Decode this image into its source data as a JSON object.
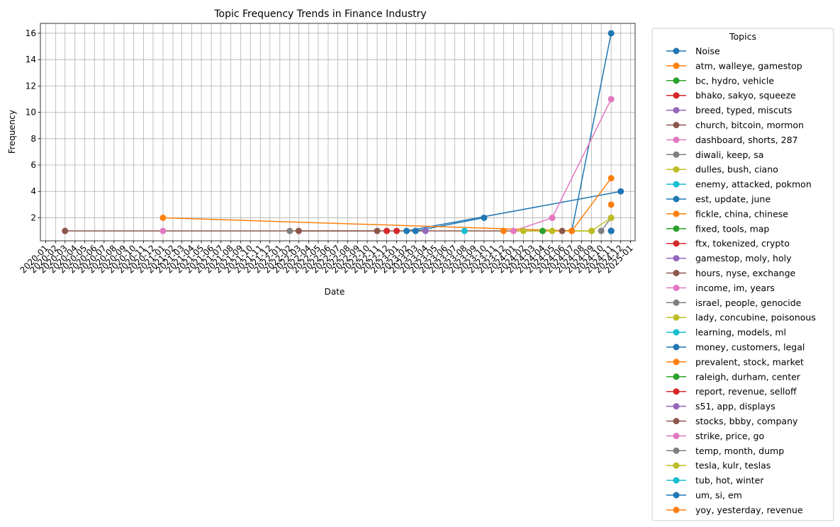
{
  "chart_data": {
    "type": "line",
    "title": "Topic Frequency Trends in Finance Industry",
    "xlabel": "Date",
    "ylabel": "Frequency",
    "x_ticks": [
      "2020-01",
      "2020-02",
      "2020-03",
      "2020-04",
      "2020-05",
      "2020-06",
      "2020-07",
      "2020-08",
      "2020-09",
      "2020-10",
      "2020-11",
      "2020-12",
      "2021-01",
      "2021-02",
      "2021-03",
      "2021-04",
      "2021-05",
      "2021-06",
      "2021-07",
      "2021-08",
      "2021-09",
      "2021-10",
      "2021-11",
      "2021-12",
      "2022-01",
      "2022-02",
      "2022-03",
      "2022-04",
      "2022-05",
      "2022-06",
      "2022-07",
      "2022-08",
      "2022-09",
      "2022-10",
      "2022-11",
      "2022-12",
      "2023-01",
      "2023-02",
      "2023-03",
      "2023-04",
      "2023-05",
      "2023-06",
      "2023-07",
      "2023-08",
      "2023-09",
      "2023-10",
      "2023-11",
      "2023-12",
      "2024-01",
      "2024-02",
      "2024-03",
      "2024-04",
      "2024-05",
      "2024-06",
      "2024-07",
      "2024-08",
      "2024-09",
      "2024-10",
      "2024-11",
      "2024-12",
      "2025-01"
    ],
    "y_ticks": [
      2,
      4,
      6,
      8,
      10,
      12,
      14,
      16
    ],
    "xlim": [
      "2019-12-15",
      "2025-01-15"
    ],
    "ylim": [
      0.25,
      16.75
    ],
    "grid": true,
    "legend": {
      "title": "Topics",
      "placement": "outside-right"
    },
    "series": [
      {
        "name": "Noise",
        "color": "#1f77b4",
        "points": [
          [
            "2024-07-01",
            1
          ],
          [
            "2024-11-01",
            16
          ]
        ]
      },
      {
        "name": "atm, walleye, gamestop",
        "color": "#ff7f0e",
        "points": [
          [
            "2024-11-01",
            3
          ]
        ]
      },
      {
        "name": "bc, hydro, vehicle",
        "color": "#2ca02c",
        "points": [
          [
            "2024-04-01",
            1
          ]
        ]
      },
      {
        "name": "bhako, sakyo, squeeze",
        "color": "#d62728",
        "points": [
          [
            "2023-01-01",
            1
          ]
        ]
      },
      {
        "name": "breed, typed, miscuts",
        "color": "#9467bd",
        "points": [
          [
            "2023-04-01",
            1
          ]
        ]
      },
      {
        "name": "church, bitcoin, mormon",
        "color": "#8c564b",
        "points": [
          [
            "2020-03-01",
            1
          ],
          [
            "2024-06-01",
            1
          ]
        ]
      },
      {
        "name": "dashboard, shorts, 287",
        "color": "#e377c2",
        "points": [
          [
            "2021-01-01",
            1
          ]
        ]
      },
      {
        "name": "diwali, keep, sa",
        "color": "#7f7f7f",
        "points": [
          [
            "2022-02-01",
            1
          ]
        ]
      },
      {
        "name": "dulles, bush, ciano",
        "color": "#bcbd22",
        "points": [
          [
            "2024-02-01",
            1
          ]
        ]
      },
      {
        "name": "enemy, attacked, pokmon",
        "color": "#17becf",
        "points": [
          [
            "2024-11-01",
            1
          ]
        ]
      },
      {
        "name": "est, update, june",
        "color": "#1f77b4",
        "points": [
          [
            "2023-03-01",
            1
          ],
          [
            "2023-10-01",
            2
          ]
        ]
      },
      {
        "name": "fickle, china, chinese",
        "color": "#ff7f0e",
        "points": [
          [
            "2023-12-01",
            1
          ]
        ]
      },
      {
        "name": "fixed, tools, map",
        "color": "#2ca02c",
        "points": [
          [
            "2024-11-01",
            1
          ]
        ]
      },
      {
        "name": "ftx, tokenized, crypto",
        "color": "#d62728",
        "points": [
          [
            "2022-12-01",
            1
          ]
        ]
      },
      {
        "name": "gamestop, moly, holy",
        "color": "#9467bd",
        "points": [
          [
            "2024-11-01",
            1
          ]
        ]
      },
      {
        "name": "hours, nyse, exchange",
        "color": "#8c564b",
        "points": [
          [
            "2022-03-01",
            1
          ],
          [
            "2022-11-01",
            1
          ]
        ]
      },
      {
        "name": "income, im, years",
        "color": "#e377c2",
        "points": [
          [
            "2024-05-01",
            2
          ]
        ]
      },
      {
        "name": "israel, people, genocide",
        "color": "#7f7f7f",
        "points": [
          [
            "2024-10-01",
            1
          ],
          [
            "2024-11-01",
            2
          ]
        ]
      },
      {
        "name": "lady, concubine, poisonous",
        "color": "#bcbd22",
        "points": [
          [
            "2024-01-01",
            1
          ],
          [
            "2024-09-01",
            1
          ]
        ]
      },
      {
        "name": "learning, models, ml",
        "color": "#17becf",
        "points": [
          [
            "2023-08-01",
            1
          ]
        ]
      },
      {
        "name": "money, customers, legal",
        "color": "#1f77b4",
        "points": [
          [
            "2023-02-01",
            1
          ],
          [
            "2024-12-01",
            4
          ]
        ]
      },
      {
        "name": "prevalent, stock, market",
        "color": "#ff7f0e",
        "points": [
          [
            "2024-07-01",
            1
          ],
          [
            "2024-11-01",
            5
          ]
        ]
      },
      {
        "name": "raleigh, durham, center",
        "color": "#2ca02c",
        "points": [
          [
            "2024-11-01",
            1
          ]
        ]
      },
      {
        "name": "report, revenue, selloff",
        "color": "#d62728",
        "points": [
          [
            "2024-11-01",
            1
          ]
        ]
      },
      {
        "name": "s51, app, displays",
        "color": "#9467bd",
        "points": [
          [
            "2024-11-01",
            1
          ]
        ]
      },
      {
        "name": "stocks, bbby, company",
        "color": "#8c564b",
        "points": [
          [
            "2024-11-01",
            1
          ]
        ]
      },
      {
        "name": "strike, price, go",
        "color": "#e377c2",
        "points": [
          [
            "2024-01-01",
            1
          ],
          [
            "2024-05-01",
            2
          ],
          [
            "2024-11-01",
            11
          ]
        ]
      },
      {
        "name": "temp, month, dump",
        "color": "#7f7f7f",
        "points": [
          [
            "2024-11-01",
            1
          ]
        ]
      },
      {
        "name": "tesla, kulr, teslas",
        "color": "#bcbd22",
        "points": [
          [
            "2024-05-01",
            1
          ],
          [
            "2024-09-01",
            1
          ],
          [
            "2024-11-01",
            2
          ]
        ]
      },
      {
        "name": "tub, hot, winter",
        "color": "#17becf",
        "points": [
          [
            "2024-11-01",
            1
          ]
        ]
      },
      {
        "name": "um, si, em",
        "color": "#1f77b4",
        "points": [
          [
            "2024-11-01",
            1
          ]
        ]
      },
      {
        "name": "yoy, yesterday, revenue",
        "color": "#ff7f0e",
        "points": [
          [
            "2021-01-01",
            2
          ],
          [
            "2024-07-01",
            1
          ]
        ]
      }
    ]
  }
}
